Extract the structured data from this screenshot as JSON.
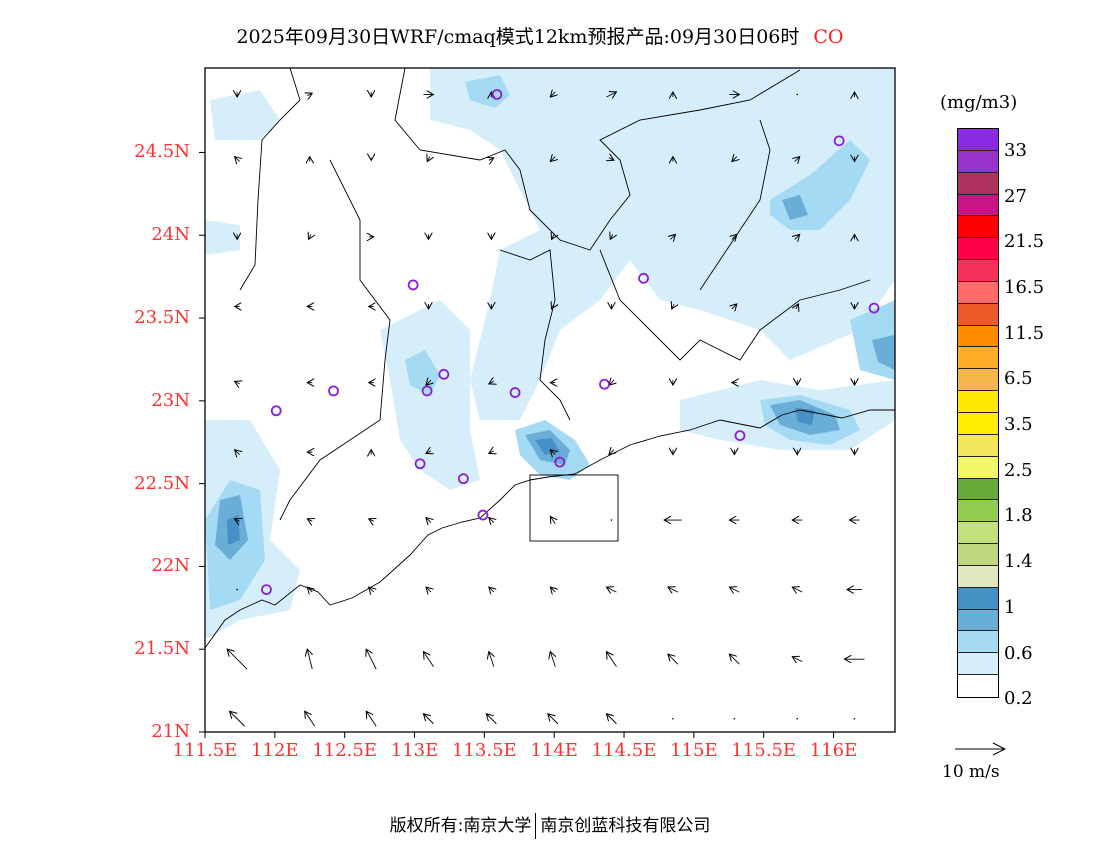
{
  "title": {
    "text": "2025年09月30日WRF/cmaq模式12km预报产品:09月30日06时",
    "species": "CO"
  },
  "colorbar": {
    "unit": "(mg/m3)",
    "colors_top_to_bottom": [
      "#8a2be2",
      "#9932cc",
      "#b03060",
      "#c71585",
      "#ff0000",
      "#ff0048",
      "#f5305a",
      "#ff6a6a",
      "#ee5a2a",
      "#ff8c00",
      "#ffae2a",
      "#f6b44c",
      "#ffe800",
      "#ffee00",
      "#f2e65a",
      "#f2f86a",
      "#6aaa3a",
      "#92cc50",
      "#c2e07c",
      "#c0d67e",
      "#e0e8c0",
      "#4590c4",
      "#6aaed8",
      "#a4daf4",
      "#d6eefa",
      "#ffffff"
    ],
    "labels": [
      "33",
      "27",
      "21.5",
      "16.5",
      "11.5",
      "6.5",
      "3.5",
      "2.5",
      "1.8",
      "1.4",
      "1",
      "0.6",
      "0.2"
    ]
  },
  "axes": {
    "lat_labels": [
      "24.5N",
      "24N",
      "23.5N",
      "23N",
      "22.5N",
      "22N",
      "21.5N",
      "21N"
    ],
    "lat_values": [
      24.5,
      24,
      23.5,
      23,
      22.5,
      22,
      21.5,
      21
    ],
    "lon_labels": [
      "111.5E",
      "112E",
      "112.5E",
      "113E",
      "113.5E",
      "114E",
      "114.5E",
      "115E",
      "115.5E",
      "116E"
    ],
    "lon_values": [
      111.5,
      112,
      112.5,
      113,
      113.5,
      114,
      114.5,
      115,
      115.5,
      116
    ],
    "lon_range": [
      111.5,
      116.44
    ],
    "lat_range": [
      21.0,
      25.01
    ]
  },
  "reference_vector": {
    "label": "10 m/s",
    "speed": 10
  },
  "stations": [
    [
      113.59,
      24.85
    ],
    [
      116.04,
      24.57
    ],
    [
      112.99,
      23.7
    ],
    [
      114.64,
      23.74
    ],
    [
      116.29,
      23.56
    ],
    [
      113.21,
      23.16
    ],
    [
      112.42,
      23.06
    ],
    [
      113.09,
      23.06
    ],
    [
      113.72,
      23.05
    ],
    [
      114.36,
      23.1
    ],
    [
      112.01,
      22.94
    ],
    [
      115.33,
      22.79
    ],
    [
      113.04,
      22.62
    ],
    [
      113.35,
      22.53
    ],
    [
      114.04,
      22.63
    ],
    [
      113.49,
      22.31
    ],
    [
      111.94,
      21.86
    ]
  ],
  "wind": {
    "lons": [
      111.73,
      112.25,
      112.69,
      113.1,
      113.55,
      113.99,
      114.41,
      114.85,
      115.29,
      115.74,
      116.15
    ],
    "lats": [
      24.85,
      24.46,
      23.99,
      23.57,
      23.11,
      22.69,
      22.28,
      21.86,
      21.44,
      21.08
    ],
    "uv": [
      [
        [
          0,
          -1
        ],
        [
          1,
          0.5
        ],
        [
          0,
          -1
        ],
        [
          2,
          0
        ],
        [
          0,
          1
        ],
        [
          -1,
          -1
        ],
        [
          2,
          1
        ],
        [
          0,
          1
        ],
        [
          2,
          0
        ],
        [
          0,
          0
        ],
        [
          0,
          1
        ]
      ],
      [
        [
          -1,
          1
        ],
        [
          0,
          1
        ],
        [
          0,
          -0.5
        ],
        [
          -0.5,
          -1
        ],
        [
          1,
          0.5
        ],
        [
          -1,
          -1
        ],
        [
          1,
          -0.5
        ],
        [
          0,
          1
        ],
        [
          -1,
          -1
        ],
        [
          1,
          1
        ],
        [
          0,
          -1
        ]
      ],
      [
        [
          0,
          -1
        ],
        [
          -0.5,
          -1
        ],
        [
          1,
          0
        ],
        [
          0,
          -1
        ],
        [
          0,
          -1
        ],
        [
          -0.5,
          -1
        ],
        [
          -0.5,
          -1
        ],
        [
          1,
          1
        ],
        [
          1,
          1
        ],
        [
          1,
          1
        ],
        [
          0,
          1
        ]
      ],
      [
        [
          -1,
          0
        ],
        [
          -1,
          0
        ],
        [
          -1,
          0
        ],
        [
          0,
          -1
        ],
        [
          0,
          -1
        ],
        [
          -0.5,
          -1
        ],
        [
          0,
          -1
        ],
        [
          -0.5,
          -1
        ],
        [
          1,
          1
        ],
        [
          0.5,
          1
        ],
        [
          0,
          -1
        ]
      ],
      [
        [
          -1,
          0.5
        ],
        [
          -1,
          0
        ],
        [
          -1,
          0
        ],
        [
          -1,
          -1
        ],
        [
          -1,
          -0.5
        ],
        [
          -1,
          0
        ],
        [
          -1,
          -1
        ],
        [
          0,
          -1
        ],
        [
          -1,
          0
        ],
        [
          0,
          -1
        ],
        [
          0,
          -1
        ]
      ],
      [
        [
          -1,
          1
        ],
        [
          -1,
          0
        ],
        [
          0,
          1
        ],
        [
          -1,
          -0.5
        ],
        [
          -1,
          -0.5
        ],
        [
          -1,
          1
        ],
        [
          -1,
          -1
        ],
        [
          0,
          -1
        ],
        [
          0,
          -1
        ],
        [
          0,
          -1
        ],
        [
          0,
          -1
        ]
      ],
      [
        [
          -1,
          0.5
        ],
        [
          -1,
          0.5
        ],
        [
          -1,
          0.5
        ],
        [
          -1,
          1
        ],
        [
          -1,
          1
        ],
        [
          -1,
          1.5
        ],
        [
          0,
          0
        ],
        [
          -3.5,
          0
        ],
        [
          -2,
          0
        ],
        [
          -2,
          0
        ],
        [
          -2,
          0
        ]
      ],
      [
        [
          0,
          0
        ],
        [
          -1,
          1
        ],
        [
          -1,
          1
        ],
        [
          -1,
          1
        ],
        [
          -1,
          1
        ],
        [
          -1,
          1
        ],
        [
          -2,
          1
        ],
        [
          -2,
          1
        ],
        [
          -2,
          1
        ],
        [
          -2,
          1
        ],
        [
          -3,
          0
        ]
      ],
      [
        [
          -4,
          4
        ],
        [
          -1,
          4
        ],
        [
          -2,
          4
        ],
        [
          -2,
          3
        ],
        [
          -1,
          3
        ],
        [
          -1,
          3
        ],
        [
          -2,
          3
        ],
        [
          -2,
          2
        ],
        [
          -2,
          2
        ],
        [
          -2,
          1
        ],
        [
          -4,
          0
        ]
      ],
      [
        [
          -3,
          3
        ],
        [
          -2,
          3
        ],
        [
          -2,
          3
        ],
        [
          -2,
          2
        ],
        [
          -2,
          2
        ],
        [
          -2,
          2
        ],
        [
          -2,
          2
        ],
        [
          0,
          0
        ],
        [
          0,
          0
        ],
        [
          0,
          0
        ],
        [
          0,
          0
        ]
      ]
    ]
  },
  "footer": {
    "left": "版权所有:南京大学",
    "right": "南京创蓝科技有限公司"
  }
}
